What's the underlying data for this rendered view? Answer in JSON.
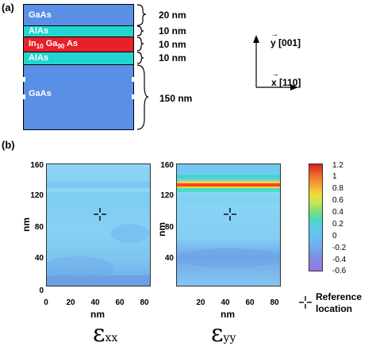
{
  "panel_a": {
    "label": "(a)",
    "layers": [
      {
        "name": "GaAs",
        "thickness": "20 nm",
        "color": "#5a8fe6"
      },
      {
        "name": "AlAs",
        "thickness": "10 nm",
        "color": "#22d6d0"
      },
      {
        "name_parts": [
          "In",
          "10",
          "Ga",
          "90",
          "As"
        ],
        "thickness": "10 nm",
        "color": "#e8202a"
      },
      {
        "name": "AlAs",
        "thickness": "10 nm",
        "color": "#22d6d0"
      },
      {
        "name": "GaAs",
        "thickness": "150 nm",
        "color": "#5a8fe6"
      }
    ],
    "axes": {
      "y_arrow": "y",
      "y_dir": "[001]",
      "x_arrow": "x",
      "x_dir": "[110]"
    }
  },
  "panel_b": {
    "label": "(b)",
    "maps": [
      {
        "ylabel": "nm",
        "xlabel": "nm",
        "yticks": [
          "160",
          "120",
          "80",
          "40",
          "0"
        ],
        "xticks": [
          "0",
          "20",
          "40",
          "60",
          "80"
        ],
        "caption_symbol": "ε",
        "caption_sub": "xx"
      },
      {
        "ylabel": "nm",
        "xlabel": "nm",
        "yticks": [
          "160",
          "120",
          "80",
          "40"
        ],
        "xticks": [
          "20",
          "40",
          "60",
          "80"
        ],
        "caption_symbol": "ε",
        "caption_sub": "yy"
      }
    ],
    "colorbar": {
      "ticks": [
        "1.2",
        "1",
        "0.8",
        "0.6",
        "0.4",
        "0.2",
        "0",
        "-0.2",
        "-0.4",
        "-0.6"
      ],
      "range": [
        -0.6,
        1.2
      ]
    },
    "legend": {
      "line1": "Reference",
      "line2": "location"
    }
  },
  "chart_data": [
    {
      "type": "heatmap",
      "title": "",
      "xlabel": "nm",
      "ylabel": "nm",
      "xlim": [
        0,
        90
      ],
      "ylim": [
        0,
        160
      ],
      "caption": "εxx",
      "reference_location": [
        45,
        100
      ]
    },
    {
      "type": "heatmap",
      "title": "",
      "xlabel": "nm",
      "ylabel": "nm",
      "xlim": [
        0,
        90
      ],
      "ylim": [
        0,
        160
      ],
      "caption": "εyy",
      "reference_location": [
        45,
        100
      ]
    }
  ]
}
